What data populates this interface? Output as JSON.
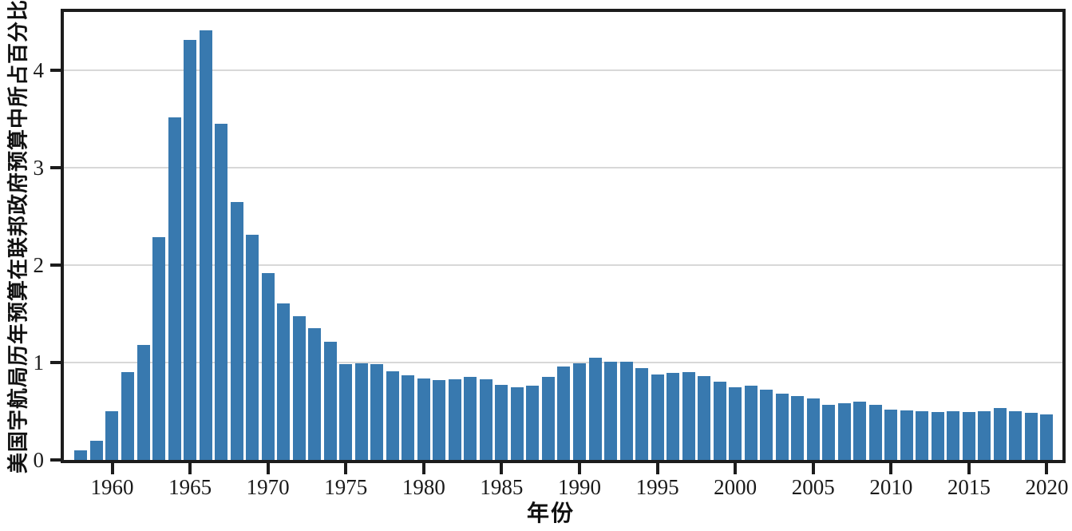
{
  "chart_data": {
    "type": "bar",
    "title": "",
    "xlabel": "年份",
    "ylabel": "美国宇航局历年预算在联邦政府预算中所占百分比",
    "x": [
      1958,
      1959,
      1960,
      1961,
      1962,
      1963,
      1964,
      1965,
      1966,
      1967,
      1968,
      1969,
      1970,
      1971,
      1972,
      1973,
      1974,
      1975,
      1976,
      1977,
      1978,
      1979,
      1980,
      1981,
      1982,
      1983,
      1984,
      1985,
      1986,
      1987,
      1988,
      1989,
      1990,
      1991,
      1992,
      1993,
      1994,
      1995,
      1996,
      1997,
      1998,
      1999,
      2000,
      2001,
      2002,
      2003,
      2004,
      2005,
      2006,
      2007,
      2008,
      2009,
      2010,
      2011,
      2012,
      2013,
      2014,
      2015,
      2016,
      2017,
      2018,
      2019,
      2020
    ],
    "values": [
      0.1,
      0.2,
      0.5,
      0.9,
      1.18,
      2.29,
      3.52,
      4.31,
      4.41,
      3.45,
      2.65,
      2.31,
      1.92,
      1.61,
      1.48,
      1.35,
      1.21,
      0.98,
      0.99,
      0.98,
      0.91,
      0.87,
      0.84,
      0.82,
      0.83,
      0.85,
      0.83,
      0.77,
      0.75,
      0.76,
      0.85,
      0.96,
      0.99,
      1.05,
      1.01,
      1.01,
      0.94,
      0.88,
      0.89,
      0.9,
      0.86,
      0.8,
      0.75,
      0.76,
      0.72,
      0.68,
      0.66,
      0.63,
      0.57,
      0.58,
      0.6,
      0.57,
      0.52,
      0.51,
      0.5,
      0.49,
      0.5,
      0.49,
      0.5,
      0.53,
      0.5,
      0.48,
      0.47
    ],
    "xticks": [
      1960,
      1965,
      1970,
      1975,
      1980,
      1985,
      1990,
      1995,
      2000,
      2005,
      2010,
      2015,
      2020
    ],
    "xtick_labels": [
      "1960",
      "1965",
      "1970",
      "1975",
      "1980",
      "1985",
      "1990",
      "1995",
      "2000",
      "2005",
      "2010",
      "2015",
      "2020"
    ],
    "yticks": [
      0,
      1,
      2,
      3,
      4
    ],
    "ytick_labels": [
      "0",
      "1",
      "2",
      "3",
      "4"
    ],
    "xlim": [
      1956.9,
      2021.0
    ],
    "ylim": [
      0,
      4.6
    ],
    "grid": true,
    "legend": "none",
    "bar_width_fraction": 0.82,
    "colors": {
      "bar": "#3879af",
      "grid": "#d8d8d8",
      "frame": "#1c1c1c",
      "text": "#1a1a1a",
      "background": "#ffffff"
    }
  }
}
